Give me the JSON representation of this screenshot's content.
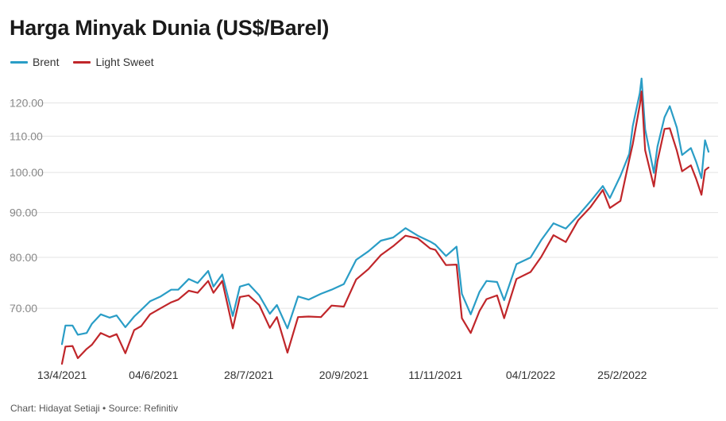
{
  "title": "Harga Minyak Dunia (US$/Barel)",
  "footer": "Chart: Hidayat Setiaji • Source: Refinitiv",
  "colors": {
    "brent": "#2a9dc6",
    "light_sweet": "#c0262a",
    "grid": "#e3e3e3"
  },
  "chart_data": {
    "type": "line",
    "title": "Harga Minyak Dunia (US$/Barel)",
    "xlabel": "",
    "ylabel": "",
    "y_scale": "log",
    "ylim": [
      60.5,
      129
    ],
    "yticks": [
      70,
      80,
      90,
      100,
      110,
      120
    ],
    "ytick_labels": [
      "70.00",
      "80.00",
      "90.00",
      "100.00",
      "110.00",
      "120.00"
    ],
    "xlim": [
      "2021-04-13",
      "2022-04-15"
    ],
    "xticks": [
      "2021-04-13",
      "2021-06-04",
      "2021-07-28",
      "2021-09-20",
      "2021-11-11",
      "2022-01-04",
      "2022-02-25"
    ],
    "xtick_labels": [
      "13/4/2021",
      "04/6/2021",
      "28/7/2021",
      "20/9/2021",
      "11/11/2021",
      "04/1/2022",
      "25/2/2022"
    ],
    "grid": true,
    "legend_position": "top-left",
    "series": [
      {
        "name": "Brent",
        "points": [
          [
            "2021-04-13",
            63.7
          ],
          [
            "2021-04-15",
            66.9
          ],
          [
            "2021-04-19",
            66.9
          ],
          [
            "2021-04-22",
            65.3
          ],
          [
            "2021-04-27",
            65.6
          ],
          [
            "2021-04-30",
            67.2
          ],
          [
            "2021-05-05",
            68.9
          ],
          [
            "2021-05-10",
            68.3
          ],
          [
            "2021-05-14",
            68.7
          ],
          [
            "2021-05-19",
            66.6
          ],
          [
            "2021-05-24",
            68.5
          ],
          [
            "2021-05-28",
            69.7
          ],
          [
            "2021-06-02",
            71.3
          ],
          [
            "2021-06-08",
            72.2
          ],
          [
            "2021-06-14",
            73.5
          ],
          [
            "2021-06-18",
            73.5
          ],
          [
            "2021-06-24",
            75.6
          ],
          [
            "2021-06-29",
            74.8
          ],
          [
            "2021-07-05",
            77.2
          ],
          [
            "2021-07-08",
            74.1
          ],
          [
            "2021-07-13",
            76.5
          ],
          [
            "2021-07-19",
            68.6
          ],
          [
            "2021-07-23",
            74.1
          ],
          [
            "2021-07-28",
            74.6
          ],
          [
            "2021-08-03",
            72.4
          ],
          [
            "2021-08-09",
            69.0
          ],
          [
            "2021-08-13",
            70.6
          ],
          [
            "2021-08-19",
            66.4
          ],
          [
            "2021-08-25",
            72.2
          ],
          [
            "2021-08-31",
            71.6
          ],
          [
            "2021-09-07",
            72.7
          ],
          [
            "2021-09-13",
            73.5
          ],
          [
            "2021-09-20",
            74.6
          ],
          [
            "2021-09-27",
            79.5
          ],
          [
            "2021-10-04",
            81.3
          ],
          [
            "2021-10-11",
            83.6
          ],
          [
            "2021-10-18",
            84.3
          ],
          [
            "2021-10-25",
            86.4
          ],
          [
            "2021-11-01",
            84.7
          ],
          [
            "2021-11-08",
            83.4
          ],
          [
            "2021-11-11",
            82.7
          ],
          [
            "2021-11-17",
            80.3
          ],
          [
            "2021-11-23",
            82.3
          ],
          [
            "2021-11-26",
            72.7
          ],
          [
            "2021-12-01",
            68.9
          ],
          [
            "2021-12-06",
            73.1
          ],
          [
            "2021-12-10",
            75.2
          ],
          [
            "2021-12-16",
            75.0
          ],
          [
            "2021-12-20",
            71.5
          ],
          [
            "2021-12-27",
            78.6
          ],
          [
            "2022-01-04",
            80.0
          ],
          [
            "2022-01-10",
            83.7
          ],
          [
            "2022-01-17",
            87.5
          ],
          [
            "2022-01-24",
            86.3
          ],
          [
            "2022-01-31",
            89.3
          ],
          [
            "2022-02-07",
            92.7
          ],
          [
            "2022-02-14",
            96.5
          ],
          [
            "2022-02-18",
            93.5
          ],
          [
            "2022-02-24",
            99.1
          ],
          [
            "2022-03-01",
            105.0
          ],
          [
            "2022-03-03",
            112.9
          ],
          [
            "2022-03-07",
            123.2
          ],
          [
            "2022-03-08",
            127.98
          ],
          [
            "2022-03-10",
            112.0
          ],
          [
            "2022-03-15",
            99.9
          ],
          [
            "2022-03-17",
            107.0
          ],
          [
            "2022-03-21",
            115.6
          ],
          [
            "2022-03-24",
            119.0
          ],
          [
            "2022-03-28",
            112.5
          ],
          [
            "2022-03-31",
            104.7
          ],
          [
            "2022-04-05",
            106.6
          ],
          [
            "2022-04-08",
            102.8
          ],
          [
            "2022-04-11",
            98.5
          ],
          [
            "2022-04-13",
            108.8
          ],
          [
            "2022-04-15",
            105.6
          ]
        ]
      },
      {
        "name": "Light Sweet",
        "points": [
          [
            "2021-04-13",
            60.5
          ],
          [
            "2021-04-15",
            63.3
          ],
          [
            "2021-04-19",
            63.4
          ],
          [
            "2021-04-22",
            61.4
          ],
          [
            "2021-04-27",
            62.9
          ],
          [
            "2021-04-30",
            63.6
          ],
          [
            "2021-05-05",
            65.6
          ],
          [
            "2021-05-10",
            64.9
          ],
          [
            "2021-05-14",
            65.4
          ],
          [
            "2021-05-19",
            62.2
          ],
          [
            "2021-05-24",
            66.1
          ],
          [
            "2021-05-28",
            66.8
          ],
          [
            "2021-06-02",
            68.9
          ],
          [
            "2021-06-08",
            70.0
          ],
          [
            "2021-06-14",
            71.1
          ],
          [
            "2021-06-18",
            71.6
          ],
          [
            "2021-06-24",
            73.3
          ],
          [
            "2021-06-29",
            72.9
          ],
          [
            "2021-07-05",
            75.2
          ],
          [
            "2021-07-08",
            72.9
          ],
          [
            "2021-07-13",
            75.2
          ],
          [
            "2021-07-19",
            66.4
          ],
          [
            "2021-07-23",
            72.1
          ],
          [
            "2021-07-28",
            72.4
          ],
          [
            "2021-08-03",
            70.6
          ],
          [
            "2021-08-09",
            66.5
          ],
          [
            "2021-08-13",
            68.4
          ],
          [
            "2021-08-19",
            62.3
          ],
          [
            "2021-08-25",
            68.4
          ],
          [
            "2021-08-31",
            68.5
          ],
          [
            "2021-09-07",
            68.4
          ],
          [
            "2021-09-13",
            70.5
          ],
          [
            "2021-09-20",
            70.3
          ],
          [
            "2021-09-27",
            75.5
          ],
          [
            "2021-10-04",
            77.6
          ],
          [
            "2021-10-11",
            80.5
          ],
          [
            "2021-10-18",
            82.4
          ],
          [
            "2021-10-25",
            84.7
          ],
          [
            "2021-11-01",
            84.1
          ],
          [
            "2021-11-08",
            81.9
          ],
          [
            "2021-11-11",
            81.6
          ],
          [
            "2021-11-17",
            78.4
          ],
          [
            "2021-11-23",
            78.5
          ],
          [
            "2021-11-26",
            68.2
          ],
          [
            "2021-12-01",
            65.6
          ],
          [
            "2021-12-06",
            69.5
          ],
          [
            "2021-12-10",
            71.7
          ],
          [
            "2021-12-16",
            72.4
          ],
          [
            "2021-12-20",
            68.2
          ],
          [
            "2021-12-27",
            75.6
          ],
          [
            "2022-01-04",
            77.0
          ],
          [
            "2022-01-10",
            80.1
          ],
          [
            "2022-01-17",
            84.8
          ],
          [
            "2022-01-24",
            83.3
          ],
          [
            "2022-01-31",
            88.2
          ],
          [
            "2022-02-07",
            91.3
          ],
          [
            "2022-02-14",
            95.5
          ],
          [
            "2022-02-18",
            91.1
          ],
          [
            "2022-02-24",
            92.8
          ],
          [
            "2022-03-01",
            103.4
          ],
          [
            "2022-03-03",
            107.7
          ],
          [
            "2022-03-07",
            119.4
          ],
          [
            "2022-03-08",
            123.7
          ],
          [
            "2022-03-10",
            106.0
          ],
          [
            "2022-03-15",
            96.4
          ],
          [
            "2022-03-17",
            103.0
          ],
          [
            "2022-03-21",
            112.1
          ],
          [
            "2022-03-24",
            112.3
          ],
          [
            "2022-03-28",
            105.9
          ],
          [
            "2022-03-31",
            100.3
          ],
          [
            "2022-04-05",
            101.9
          ],
          [
            "2022-04-08",
            98.3
          ],
          [
            "2022-04-11",
            94.3
          ],
          [
            "2022-04-13",
            100.6
          ],
          [
            "2022-04-15",
            101.3
          ]
        ]
      }
    ]
  }
}
